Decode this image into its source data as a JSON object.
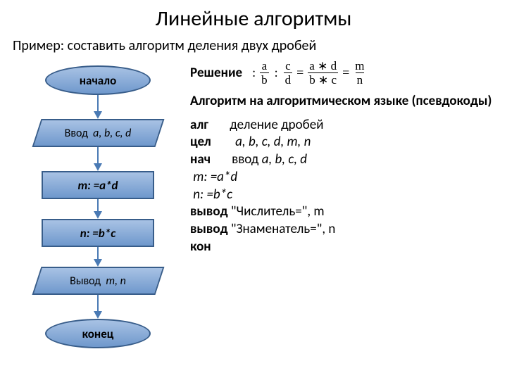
{
  "title": "Линейные алгоритмы",
  "subtitle": "Пример: составить алгоритм деления двух дробей",
  "flowchart": {
    "shape_fill_top": "#a8c2e4",
    "shape_fill_bottom": "#6f98cc",
    "shape_border": "#385d8a",
    "arrow_color": "#4a7ab4",
    "nodes": {
      "start": {
        "type": "terminator",
        "label": "начало"
      },
      "input": {
        "type": "io",
        "prefix": "Ввод",
        "vars": "a, b, c, d"
      },
      "p1": {
        "type": "process",
        "label": "m: =a*d"
      },
      "p2": {
        "type": "process",
        "label": "n: =b*c"
      },
      "output": {
        "type": "io",
        "prefix": "Вывод",
        "vars": "m, n"
      },
      "end": {
        "type": "terminator",
        "label": "конец"
      }
    }
  },
  "solution": {
    "label": "Решение",
    "formula": {
      "f1_num": "a",
      "f1_den": "b",
      "op1": ":",
      "f2_num": "c",
      "f2_den": "d",
      "eq1": "=",
      "f3_num": "a ∗ d",
      "f3_den": "b ∗ c",
      "eq2": "=",
      "f4_num": "m",
      "f4_den": "n"
    }
  },
  "algo_heading": "Алгоритм на алгоритмическом языке (псевдокоды)",
  "pseudocode": {
    "l1_kw": "алг",
    "l1_rest": "деление дробей",
    "l2_kw": "цел",
    "l2_rest": "a, b, c, d, m, n",
    "l3_kw": "нач",
    "l3_rest": "ввод a, b, c, d",
    "l4": " m: =a*d",
    "l5": " n: =b*c",
    "l6_kw": "вывод",
    "l6_rest": "\"Числитель=\", m",
    "l7_kw": "вывод",
    "l7_rest": "\"Знаменатель=\", n",
    "l8_kw": "кон"
  }
}
